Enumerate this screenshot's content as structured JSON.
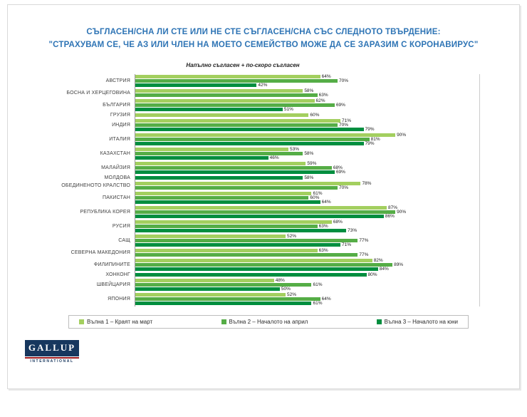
{
  "page": {
    "title_line1": "СЪГЛАСЕН/СНА ЛИ СТЕ ИЛИ НЕ СТЕ СЪГЛАСЕН/СНА СЪС СЛЕДНОТО ТВЪРДЕНИЕ:",
    "title_line2": "\"СТРАХУВАМ СЕ, ЧЕ АЗ ИЛИ ЧЛЕН НА МОЕТО СЕМЕЙСТВО МОЖЕ ДА СЕ ЗАРАЗИМ С КОРОНАВИРУС\"",
    "title_color": "#2e74b5",
    "logo": {
      "name": "GALLUP",
      "sub": "INTERNATIONAL"
    }
  },
  "chart_data": {
    "type": "bar",
    "orientation": "horizontal",
    "subtitle": "Напълно съгласен + по-скоро съгласен",
    "unit": "%",
    "xlim": [
      0,
      100
    ],
    "grid": false,
    "legend_position": "bottom",
    "series": [
      {
        "name": "Вълна 1 – Краят на март",
        "color": "#a3cf5f"
      },
      {
        "name": "Вълна 2 – Началото на април",
        "color": "#55ad46"
      },
      {
        "name": "Вълна 3 – Началото на юни",
        "color": "#008e3f"
      }
    ],
    "countries": [
      {
        "label": "АВСТРИЯ",
        "bars": [
          {
            "wave": 1,
            "value": 64
          },
          {
            "wave": 2,
            "value": 70
          },
          {
            "wave": 3,
            "value": 42
          }
        ]
      },
      {
        "label": "БОСНА И ХЕРЦЕГОВИНА",
        "bars": [
          {
            "wave": 1,
            "value": 58
          },
          {
            "wave": 2,
            "value": 63
          }
        ]
      },
      {
        "label": "БЪЛГАРИЯ",
        "bars": [
          {
            "wave": 1,
            "value": 62
          },
          {
            "wave": 2,
            "value": 69
          },
          {
            "wave": 3,
            "value": 51
          }
        ]
      },
      {
        "label": "ГРУЗИЯ",
        "bars": [
          {
            "wave": 1,
            "value": 60
          }
        ]
      },
      {
        "label": "ИНДИЯ",
        "bars": [
          {
            "wave": 1,
            "value": 71
          },
          {
            "wave": 2,
            "value": 70
          },
          {
            "wave": 3,
            "value": 79
          }
        ]
      },
      {
        "label": "ИТАЛИЯ",
        "bars": [
          {
            "wave": 1,
            "value": 90
          },
          {
            "wave": 2,
            "value": 81
          },
          {
            "wave": 3,
            "value": 79
          }
        ]
      },
      {
        "label": "КАЗАХСТАН",
        "bars": [
          {
            "wave": 1,
            "value": 53
          },
          {
            "wave": 2,
            "value": 58
          },
          {
            "wave": 3,
            "value": 46
          }
        ]
      },
      {
        "label": "МАЛАЙЗИЯ",
        "bars": [
          {
            "wave": 1,
            "value": 59
          },
          {
            "wave": 2,
            "value": 68
          },
          {
            "wave": 3,
            "value": 69
          }
        ]
      },
      {
        "label": "МОЛДОВА",
        "bars": [
          {
            "wave": 3,
            "value": 58
          }
        ]
      },
      {
        "label": "ОБЕДИНЕНОТО КРАЛСТВО",
        "bars": [
          {
            "wave": 1,
            "value": 78
          },
          {
            "wave": 2,
            "value": 70
          }
        ]
      },
      {
        "label": "ПАКИСТАН",
        "bars": [
          {
            "wave": 1,
            "value": 61
          },
          {
            "wave": 2,
            "value": 60
          },
          {
            "wave": 3,
            "value": 64
          }
        ]
      },
      {
        "label": "РЕПУБЛИКА КОРЕЯ",
        "bars": [
          {
            "wave": 1,
            "value": 87
          },
          {
            "wave": 2,
            "value": 90
          },
          {
            "wave": 3,
            "value": 86
          }
        ]
      },
      {
        "label": "РУСИЯ",
        "bars": [
          {
            "wave": 1,
            "value": 68
          },
          {
            "wave": 2,
            "value": 63
          },
          {
            "wave": 3,
            "value": 73
          }
        ]
      },
      {
        "label": "САЩ",
        "bars": [
          {
            "wave": 1,
            "value": 52
          },
          {
            "wave": 2,
            "value": 77
          },
          {
            "wave": 3,
            "value": 71
          }
        ]
      },
      {
        "label": "СЕВЕРНА МАКЕДОНИЯ",
        "bars": [
          {
            "wave": 1,
            "value": 63
          },
          {
            "wave": 2,
            "value": 77
          }
        ]
      },
      {
        "label": "ФИЛИПИНИТЕ",
        "bars": [
          {
            "wave": 1,
            "value": 82
          },
          {
            "wave": 2,
            "value": 89
          },
          {
            "wave": 3,
            "value": 84
          }
        ]
      },
      {
        "label": "ХОНКОНГ",
        "bars": [
          {
            "wave": 3,
            "value": 80
          }
        ]
      },
      {
        "label": "ШВЕЙЦАРИЯ",
        "bars": [
          {
            "wave": 1,
            "value": 48
          },
          {
            "wave": 2,
            "value": 61
          },
          {
            "wave": 3,
            "value": 50
          }
        ]
      },
      {
        "label": "ЯПОНИЯ",
        "bars": [
          {
            "wave": 1,
            "value": 52
          },
          {
            "wave": 2,
            "value": 64
          },
          {
            "wave": 3,
            "value": 61
          }
        ]
      }
    ]
  }
}
